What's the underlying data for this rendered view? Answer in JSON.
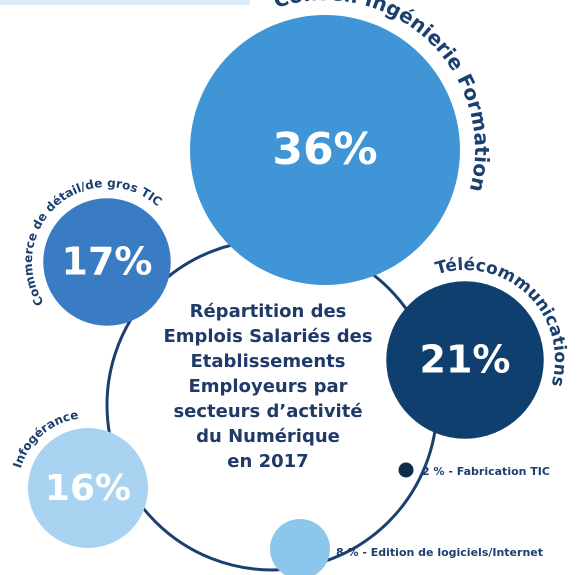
{
  "chart_data": {
    "type": "bubble",
    "title_lines": [
      "Répartition des",
      "Emplois Salariés des",
      "Etablissements",
      "Employeurs par",
      "secteurs d’activité",
      "du Numérique",
      "en 2017"
    ],
    "categories": [
      "Conseil Ingénierie Formation",
      "Commerce de détail/de gros TIC",
      "Télécommunications",
      "Infogérance",
      "Fabrication TIC",
      "Edition de logiciels/Internet"
    ],
    "values": [
      36,
      17,
      21,
      16,
      2,
      8
    ],
    "value_labels": [
      "36%",
      "17%",
      "21%",
      "16%",
      "2 %",
      "8 %"
    ],
    "label_separator": " - ",
    "colors": [
      "#3f95d6",
      "#3a7cc4",
      "#0e3f6f",
      "#a9d3f0",
      "#0d2b4a",
      "#8cc6ec"
    ]
  }
}
